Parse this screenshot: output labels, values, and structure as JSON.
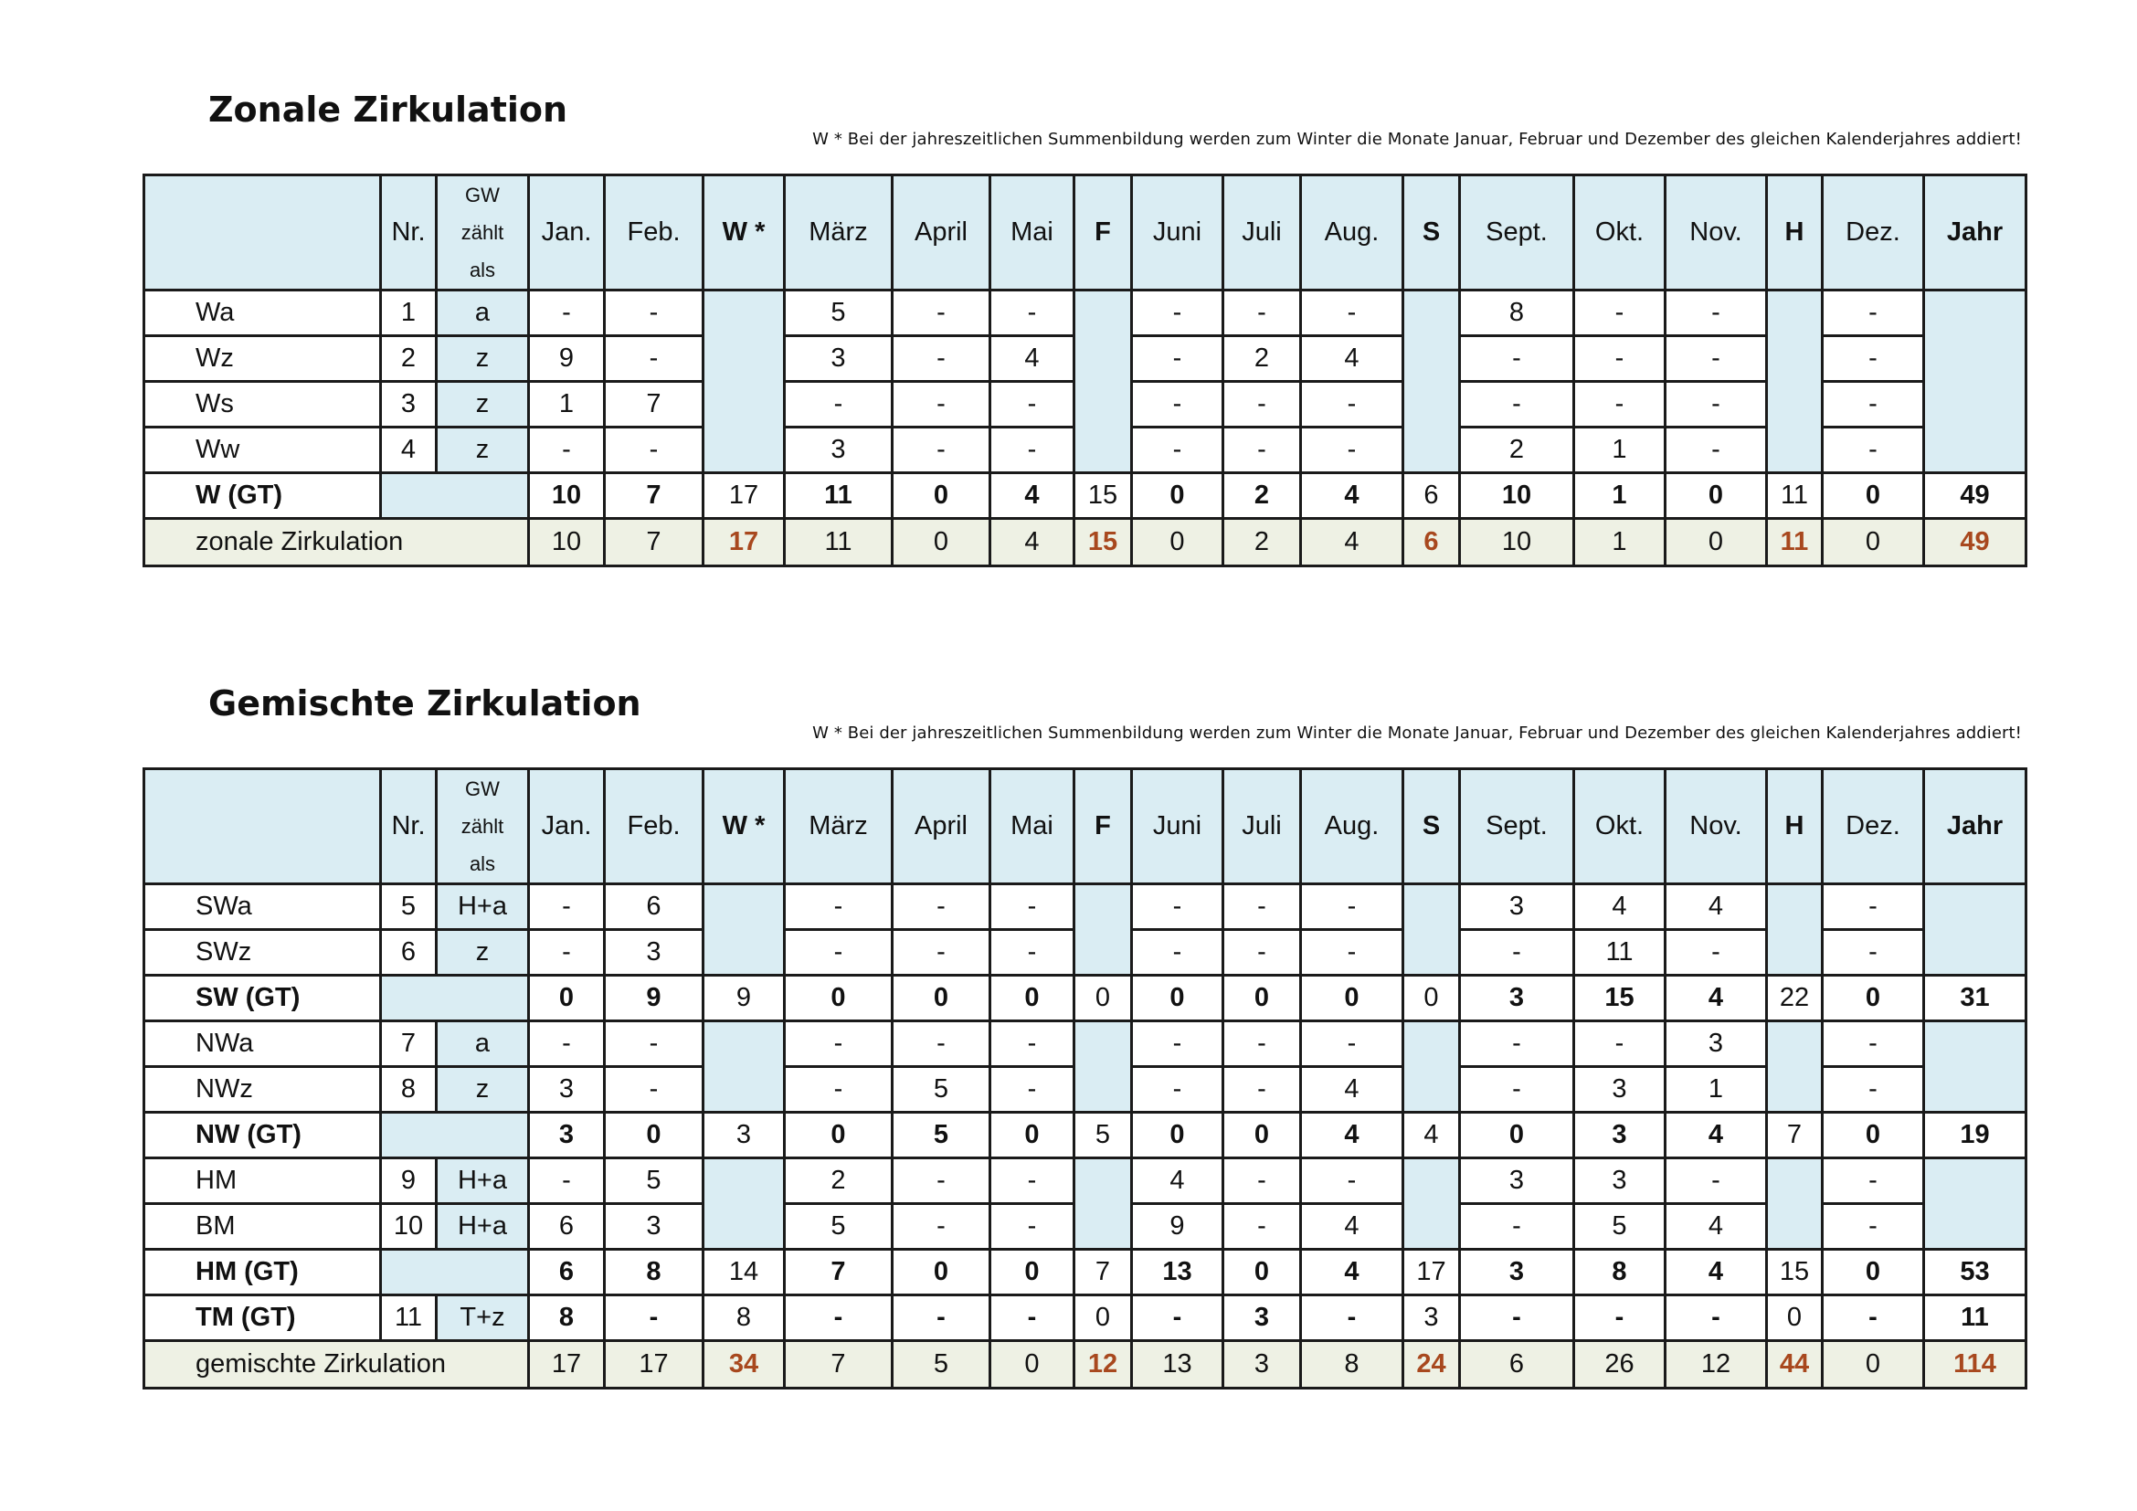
{
  "note": "W *   Bei der jahreszeitlichen  Summenbildung werden zum Winter  die Monate Januar, Februar und Dezember des gleichen Kalenderjahres  addiert!",
  "header": {
    "nr": "Nr.",
    "gw": [
      "GW",
      "zählt",
      "als"
    ],
    "months": [
      "Jan.",
      "Feb.",
      "W *",
      "März",
      "April",
      "Mai",
      "F",
      "Juni",
      "Juli",
      "Aug.",
      "S",
      "Sept.",
      "Okt.",
      "Nov.",
      "H",
      "Dez.",
      "Jahr"
    ]
  },
  "colors": {
    "header_bg": "#daedf3",
    "total_bg": "#eef1e4",
    "highlight": "#a8481e"
  },
  "zonal": {
    "title": "Zonale Zirkulation",
    "rows": [
      {
        "label": "Wa",
        "nr": "1",
        "gw": "a",
        "vals": [
          "-",
          "-",
          "5",
          "-",
          "-",
          "-",
          "-",
          "-",
          "8",
          "-",
          "-",
          "-"
        ]
      },
      {
        "label": "Wz",
        "nr": "2",
        "gw": "z",
        "vals": [
          "9",
          "-",
          "3",
          "-",
          "4",
          "-",
          "2",
          "4",
          "-",
          "-",
          "-",
          "-"
        ]
      },
      {
        "label": "Ws",
        "nr": "3",
        "gw": "z",
        "vals": [
          "1",
          "7",
          "-",
          "-",
          "-",
          "-",
          "-",
          "-",
          "-",
          "-",
          "-",
          "-"
        ]
      },
      {
        "label": "Ww",
        "nr": "4",
        "gw": "z",
        "vals": [
          "-",
          "-",
          "3",
          "-",
          "-",
          "-",
          "-",
          "-",
          "2",
          "1",
          "-",
          "-"
        ]
      }
    ],
    "gt": {
      "label": "W (GT)",
      "vals": [
        "10",
        "7",
        "17",
        "11",
        "0",
        "4",
        "15",
        "0",
        "2",
        "4",
        "6",
        "10",
        "1",
        "0",
        "11",
        "0",
        "49"
      ]
    },
    "total": {
      "label": "zonale Zirkulation",
      "vals": [
        "10",
        "7",
        "17",
        "11",
        "0",
        "4",
        "15",
        "0",
        "2",
        "4",
        "6",
        "10",
        "1",
        "0",
        "11",
        "0",
        "49"
      ]
    }
  },
  "mixed": {
    "title": "Gemischte Zirkulation",
    "sw": [
      {
        "label": "SWa",
        "nr": "5",
        "gw": "H+a",
        "vals": [
          "-",
          "6",
          "-",
          "-",
          "-",
          "-",
          "-",
          "-",
          "3",
          "4",
          "4",
          "-"
        ]
      },
      {
        "label": "SWz",
        "nr": "6",
        "gw": "z",
        "vals": [
          "-",
          "3",
          "-",
          "-",
          "-",
          "-",
          "-",
          "-",
          "-",
          "11",
          "-",
          "-"
        ]
      }
    ],
    "sw_gt": {
      "label": "SW (GT)",
      "vals": [
        "0",
        "9",
        "9",
        "0",
        "0",
        "0",
        "0",
        "0",
        "0",
        "0",
        "0",
        "3",
        "15",
        "4",
        "22",
        "0",
        "31"
      ]
    },
    "nw": [
      {
        "label": "NWa",
        "nr": "7",
        "gw": "a",
        "vals": [
          "-",
          "-",
          "-",
          "-",
          "-",
          "-",
          "-",
          "-",
          "-",
          "-",
          "3",
          "-"
        ]
      },
      {
        "label": "NWz",
        "nr": "8",
        "gw": "z",
        "vals": [
          "3",
          "-",
          "-",
          "5",
          "-",
          "-",
          "-",
          "4",
          "-",
          "3",
          "1",
          "-"
        ]
      }
    ],
    "nw_gt": {
      "label": "NW (GT)",
      "vals": [
        "3",
        "0",
        "3",
        "0",
        "5",
        "0",
        "5",
        "0",
        "0",
        "4",
        "4",
        "0",
        "3",
        "4",
        "7",
        "0",
        "19"
      ]
    },
    "hm": [
      {
        "label": "HM",
        "nr": "9",
        "gw": "H+a",
        "vals": [
          "-",
          "5",
          "2",
          "-",
          "-",
          "4",
          "-",
          "-",
          "3",
          "3",
          "-",
          "-"
        ]
      },
      {
        "label": "BM",
        "nr": "10",
        "gw": "H+a",
        "vals": [
          "6",
          "3",
          "5",
          "-",
          "-",
          "9",
          "-",
          "4",
          "-",
          "5",
          "4",
          "-"
        ]
      }
    ],
    "hm_gt": {
      "label": "HM (GT)",
      "vals": [
        "6",
        "8",
        "14",
        "7",
        "0",
        "0",
        "7",
        "13",
        "0",
        "4",
        "17",
        "3",
        "8",
        "4",
        "15",
        "0",
        "53"
      ]
    },
    "tm_gt": {
      "label": "TM (GT)",
      "nr": "11",
      "gw": "T+z",
      "vals": [
        "8",
        "-",
        "8",
        "-",
        "-",
        "-",
        "0",
        "-",
        "3",
        "-",
        "3",
        "-",
        "-",
        "-",
        "0",
        "-",
        "11"
      ]
    },
    "total": {
      "label": "gemischte Zirkulation",
      "vals": [
        "17",
        "17",
        "34",
        "7",
        "5",
        "0",
        "12",
        "13",
        "3",
        "8",
        "24",
        "6",
        "26",
        "12",
        "44",
        "0",
        "114"
      ]
    }
  }
}
